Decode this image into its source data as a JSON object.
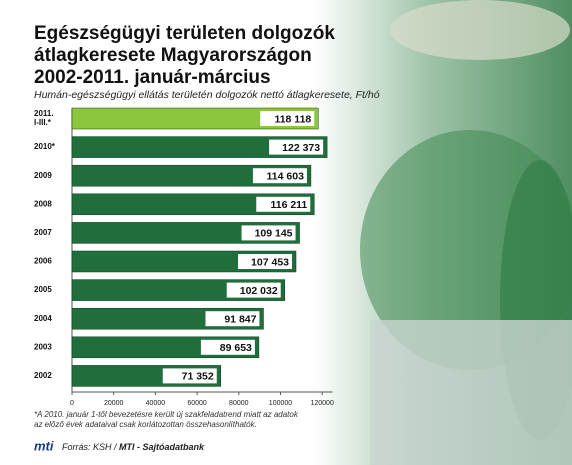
{
  "chart_data": {
    "type": "bar",
    "orientation": "horizontal",
    "title": "Egészségügyi területen dolgozók\nátlagkeresete Magyarországon\n2002-2011. január-március",
    "subtitle": "Humán-egészségügyi ellátás területén dolgozók nettó átlagkeresete, Ft/hó",
    "categories": [
      "2011.\nI-III.*",
      "2010*",
      "2009",
      "2008",
      "2007",
      "2006",
      "2005",
      "2004",
      "2003",
      "2002"
    ],
    "values": [
      118118,
      122373,
      114603,
      116211,
      109145,
      107453,
      102032,
      91847,
      89653,
      71352
    ],
    "value_labels": [
      "118 118",
      "122 373",
      "114 603",
      "116 211",
      "109 145",
      "107 453",
      "102 032",
      "91 847",
      "89 653",
      "71 352"
    ],
    "colors": [
      "#8cc63f",
      "#1f6e3c",
      "#1f6e3c",
      "#1f6e3c",
      "#1f6e3c",
      "#1f6e3c",
      "#1f6e3c",
      "#1f6e3c",
      "#1f6e3c",
      "#1f6e3c"
    ],
    "xlim": [
      0,
      125000
    ],
    "xticks": [
      0,
      20000,
      40000,
      60000,
      80000,
      100000,
      120000
    ],
    "footnote": "*A 2010. január 1-től bevezetésre került új szakfeladatrend miatt az adatok\naz előző évek adataival csak korlátozottan összehasonlíthatók.",
    "logo": "mti",
    "source": "Forrás: KSH /",
    "source_org": "MTI - Sajtóadatbank"
  }
}
